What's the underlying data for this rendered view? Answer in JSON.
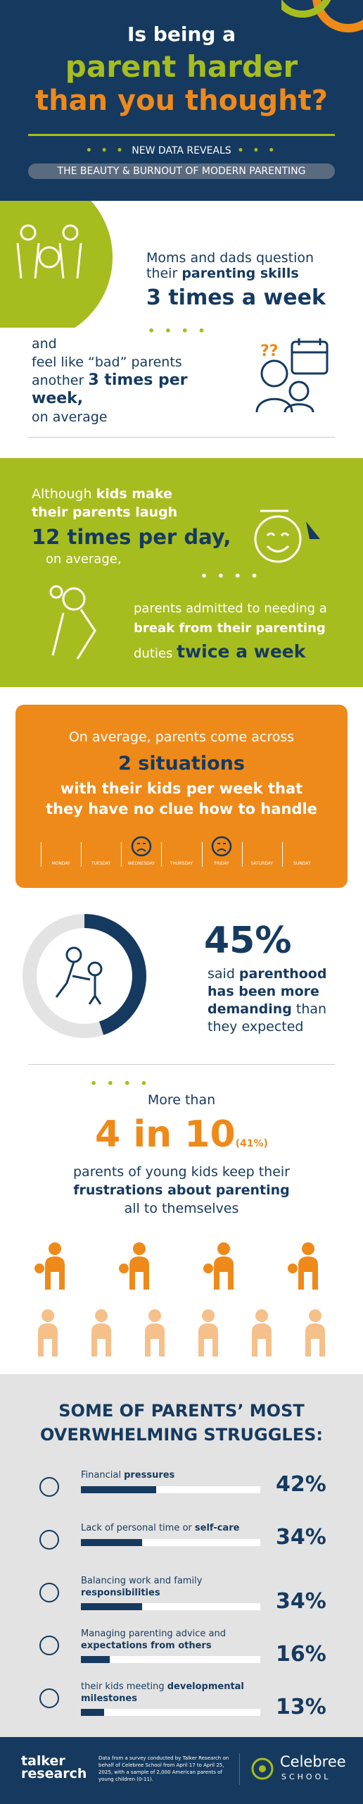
{
  "header": {
    "title_line1": "Is being a",
    "title_line2": "parent harder",
    "title_line3": "than you thought?",
    "subtitle1": "NEW DATA REVEALS",
    "subtitle2": "THE BEAUTY & BURNOUT OF MODERN PARENTING"
  },
  "skills": {
    "line1": "Moms and dads question",
    "line2a": "their ",
    "line2b": "parenting skills",
    "stat": "3 times a week"
  },
  "bad": {
    "line1": "and",
    "line2": "feel like “bad” parents",
    "line3a": "another ",
    "line3b": "3 times per week,",
    "line4": "on average"
  },
  "laugh": {
    "line1": "Although ",
    "bold": "kids make their parents laugh",
    "stat": "12 times per day,",
    "line4": "on average,"
  },
  "break_": {
    "line1": "parents admitted to needing a",
    "bold": "break from their parenting",
    "line3": "duties ",
    "stat": "twice a week"
  },
  "situations": {
    "line1": "On average, parents come across",
    "stat": "2 situations",
    "line3": "with their kids per week that they have no clue how to handle",
    "days": [
      "MONDAY",
      "TUESDAY",
      "WEDNESDAY",
      "THURSDAY",
      "FRIDAY",
      "SATURDAY",
      "SUNDAY"
    ]
  },
  "demanding": {
    "value": 45,
    "label": "45%",
    "text1": "said ",
    "bold": "parenthood has been more demanding",
    "text2": " than they expected"
  },
  "frustrations": {
    "line1": "More than",
    "stat": "4 in 10",
    "pct": "(41%)",
    "line3": "parents of young kids keep their",
    "bold": "frustrations about parenting",
    "line5": "all to themselves"
  },
  "struggles": {
    "title": "SOME OF PARENTS’ MOST OVERWHELMING STRUGGLES:",
    "items": [
      {
        "text": "Financial ",
        "bold": "pressures",
        "value": 42,
        "value_label": "42%"
      },
      {
        "text": "Lack of personal time or ",
        "bold": "self-care",
        "value": 34,
        "value_label": "34%"
      },
      {
        "text": "Balancing work and family ",
        "bold": "responsibilities",
        "value": 34,
        "value_label": "34%"
      },
      {
        "text": "Managing parenting advice and ",
        "bold": "expectations from others",
        "value": 16,
        "value_label": "16%"
      },
      {
        "text": "their kids meeting ",
        "bold": "developmental milestones",
        "value": 13,
        "value_label": "13%"
      }
    ]
  },
  "footer": {
    "logo1": "talker",
    "logo2": "research",
    "note": "Data from a survey conducted by Talker Research on behalf of Celebree School from April 17 to April 25, 2025, with a sample of 2,000 American parents of young children (0-11).",
    "brand": "Celebree",
    "brand_sub": "SCHOOL"
  }
}
